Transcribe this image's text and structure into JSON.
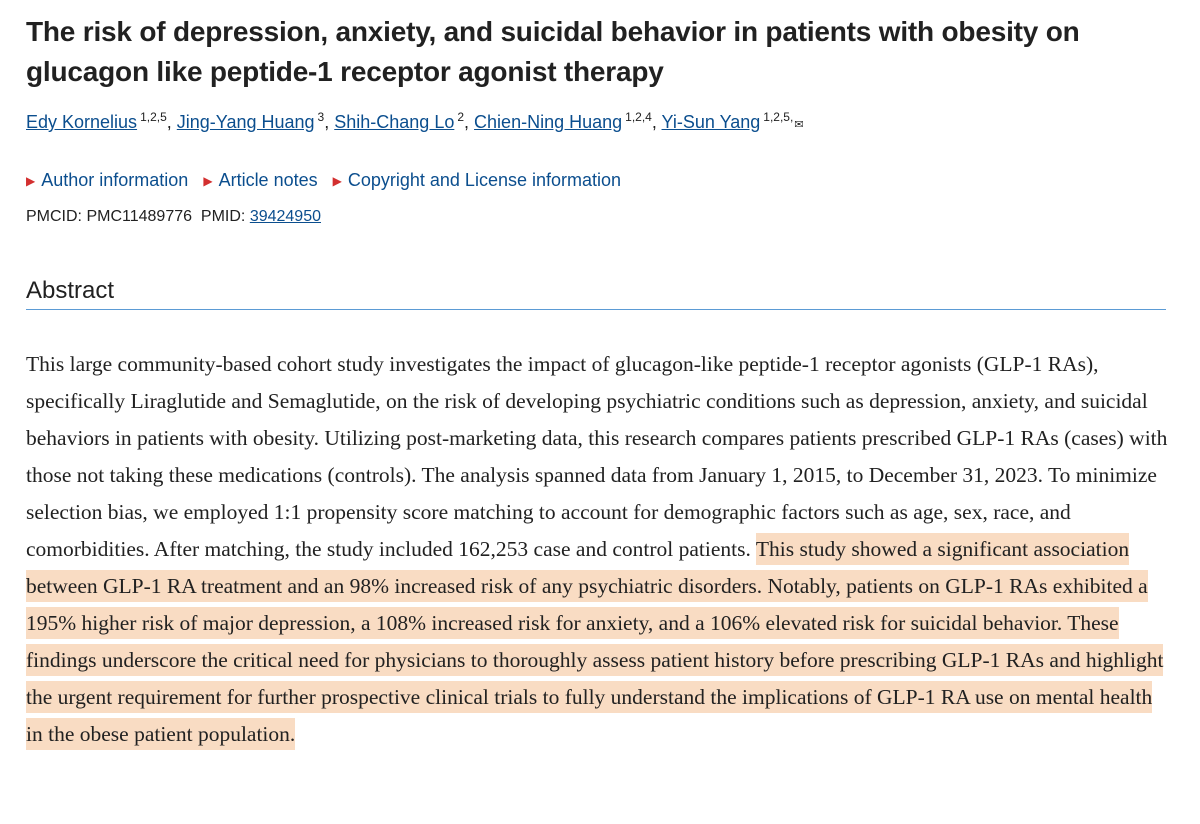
{
  "article": {
    "title": "The risk of depression, anxiety, and suicidal behavior in patients with obesity on glucagon like peptide-1 receptor agonist therapy",
    "authors": [
      {
        "name": "Edy Kornelius",
        "sup": "1,2,5"
      },
      {
        "name": "Jing-Yang Huang",
        "sup": "3"
      },
      {
        "name": "Shih-Chang Lo",
        "sup": "2"
      },
      {
        "name": "Chien-Ning Huang",
        "sup": "1,2,4"
      },
      {
        "name": "Yi-Sun Yang",
        "sup": "1,2,5,"
      }
    ],
    "links": {
      "author_info": "Author information",
      "article_notes": "Article notes",
      "copyright": "Copyright and License information"
    },
    "ids": {
      "pmcid_label": "PMCID:",
      "pmcid": "PMC11489776",
      "pmid_label": "PMID:",
      "pmid": "39424950"
    },
    "abstract_heading": "Abstract",
    "abstract_plain": "This large community-based cohort study investigates the impact of glucagon-like peptide-1 receptor agonists (GLP-1 RAs), specifically Liraglutide and Semaglutide, on the risk of developing psychiatric conditions such as depression, anxiety, and suicidal behaviors in patients with obesity. Utilizing post-marketing data, this research compares patients prescribed GLP-1 RAs (cases) with those not taking these medications (controls). The analysis spanned data from January 1, 2015, to December 31, 2023. To minimize selection bias, we employed 1:1 propensity score matching to account for demographic factors such as age, sex, race, and comorbidities. After matching, the study included 162,253 case and control patients. ",
    "abstract_highlight": "This study showed a significant association between GLP-1 RA treatment and an 98% increased risk of any psychiatric disorders. Notably, patients on GLP-1 RAs exhibited a 195% higher risk of major depression, a 108% increased risk for anxiety, and a 106% elevated risk for suicidal behavior. These findings underscore the critical need for physicians to thoroughly assess patient history before prescribing GLP-1 RAs and highlight the urgent requirement for further prospective clinical trials to fully understand the implications of GLP-1 RA use on mental health in the obese patient population."
  },
  "colors": {
    "link": "#0b4e8e",
    "triangle": "#d32f2f",
    "highlight": "#f9dcc3",
    "rule": "#5b9bd5"
  },
  "icons": {
    "disclosure": "triangle-right-icon",
    "email": "envelope-icon"
  }
}
